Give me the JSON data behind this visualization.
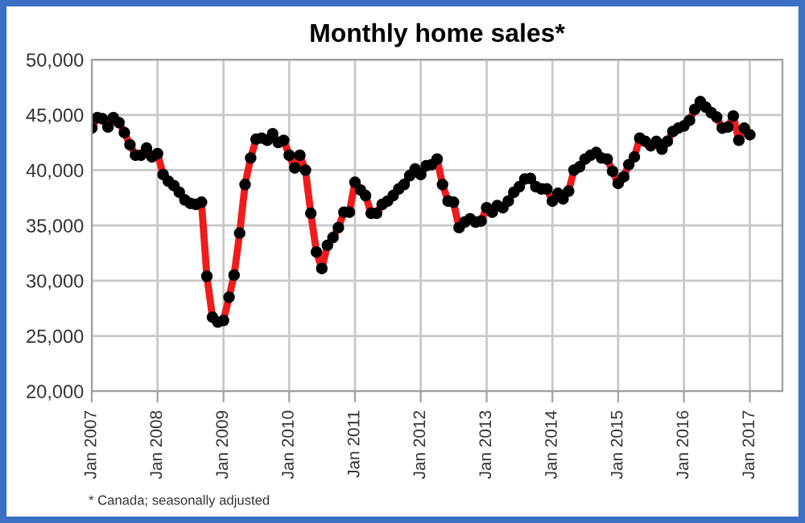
{
  "chart_data": {
    "type": "line",
    "title": "Monthly home sales*",
    "annotations": [
      "* Canada; seasonally adjusted"
    ],
    "x": [
      "2007-01",
      "2007-02",
      "2007-03",
      "2007-04",
      "2007-05",
      "2007-06",
      "2007-07",
      "2007-08",
      "2007-09",
      "2007-10",
      "2007-11",
      "2007-12",
      "2008-01",
      "2008-02",
      "2008-03",
      "2008-04",
      "2008-05",
      "2008-06",
      "2008-07",
      "2008-08",
      "2008-09",
      "2008-10",
      "2008-11",
      "2008-12",
      "2009-01",
      "2009-02",
      "2009-03",
      "2009-04",
      "2009-05",
      "2009-06",
      "2009-07",
      "2009-08",
      "2009-09",
      "2009-10",
      "2009-11",
      "2009-12",
      "2010-01",
      "2010-02",
      "2010-03",
      "2010-04",
      "2010-05",
      "2010-06",
      "2010-07",
      "2010-08",
      "2010-09",
      "2010-10",
      "2010-11",
      "2010-12",
      "2011-01",
      "2011-02",
      "2011-03",
      "2011-04",
      "2011-05",
      "2011-06",
      "2011-07",
      "2011-08",
      "2011-09",
      "2011-10",
      "2011-11",
      "2011-12",
      "2012-01",
      "2012-02",
      "2012-03",
      "2012-04",
      "2012-05",
      "2012-06",
      "2012-07",
      "2012-08",
      "2012-09",
      "2012-10",
      "2012-11",
      "2012-12",
      "2013-01",
      "2013-02",
      "2013-03",
      "2013-04",
      "2013-05",
      "2013-06",
      "2013-07",
      "2013-08",
      "2013-09",
      "2013-10",
      "2013-11",
      "2013-12",
      "2014-01",
      "2014-02",
      "2014-03",
      "2014-04",
      "2014-05",
      "2014-06",
      "2014-07",
      "2014-08",
      "2014-09",
      "2014-10",
      "2014-11",
      "2014-12",
      "2015-01",
      "2015-02",
      "2015-03",
      "2015-04",
      "2015-05",
      "2015-06",
      "2015-07",
      "2015-08",
      "2015-09",
      "2015-10",
      "2015-11",
      "2015-12",
      "2016-01",
      "2016-02",
      "2016-03",
      "2016-04",
      "2016-05",
      "2016-06",
      "2016-07",
      "2016-08",
      "2016-09",
      "2016-10",
      "2016-11",
      "2016-12",
      "2017-01"
    ],
    "series": [
      {
        "color": "#ee1c1c",
        "values": [
          43800,
          44750,
          44650,
          43900,
          44750,
          44300,
          43400,
          42300,
          41350,
          41350,
          42000,
          41200,
          41500,
          39600,
          39000,
          38600,
          38000,
          37300,
          37000,
          36900,
          37100,
          30400,
          26700,
          26250,
          26400,
          28500,
          30500,
          34300,
          38700,
          41100,
          42800,
          42900,
          42700,
          43300,
          42500,
          42700,
          41350,
          40200,
          41350,
          40000,
          36100,
          32600,
          31100,
          33200,
          33900,
          34800,
          36200,
          36200,
          38900,
          38200,
          37700,
          36100,
          36100,
          36900,
          37200,
          37700,
          38300,
          38700,
          39500,
          40100,
          39600,
          40400,
          40500,
          41000,
          38700,
          37200,
          37100,
          34800,
          35300,
          35600,
          35300,
          35400,
          36600,
          36200,
          36800,
          36600,
          37200,
          38000,
          38500,
          39200,
          39250,
          38500,
          38300,
          38300,
          37200,
          37900,
          37400,
          38100,
          40000,
          40300,
          41000,
          41350,
          41600,
          41100,
          41000,
          39900,
          38800,
          39400,
          40500,
          41200,
          42900,
          42600,
          42200,
          42600,
          41900,
          42600,
          43500,
          43800,
          44000,
          44500,
          45500,
          46200,
          45700,
          45200,
          44800,
          43800,
          43900,
          44900,
          42700,
          43800,
          43200
        ]
      }
    ],
    "xlim": [
      "2007-01",
      "2017-07"
    ],
    "xticks": [
      {
        "value": "2007-01",
        "label": "Jan 2007"
      },
      {
        "value": "2008-01",
        "label": "Jan 2008"
      },
      {
        "value": "2009-01",
        "label": "Jan 2009"
      },
      {
        "value": "2010-01",
        "label": "Jan 2010"
      },
      {
        "value": "2011-01",
        "label": "Jan 2011"
      },
      {
        "value": "2012-01",
        "label": "Jan 2012"
      },
      {
        "value": "2013-01",
        "label": "Jan 2013"
      },
      {
        "value": "2014-01",
        "label": "Jan 2014"
      },
      {
        "value": "2015-01",
        "label": "Jan 2015"
      },
      {
        "value": "2016-01",
        "label": "Jan 2016"
      },
      {
        "value": "2017-01",
        "label": "Jan 2017"
      }
    ],
    "ylim": [
      20000,
      50000
    ],
    "yticks": [
      {
        "value": 20000,
        "label": "20,000"
      },
      {
        "value": 25000,
        "label": "25,000"
      },
      {
        "value": 30000,
        "label": "30,000"
      },
      {
        "value": 35000,
        "label": "35,000"
      },
      {
        "value": 40000,
        "label": "40,000"
      },
      {
        "value": 45000,
        "label": "45,000"
      },
      {
        "value": 50000,
        "label": "50,000"
      }
    ],
    "grid": true,
    "marker": "circle",
    "line_style": "solid",
    "legend": false
  }
}
